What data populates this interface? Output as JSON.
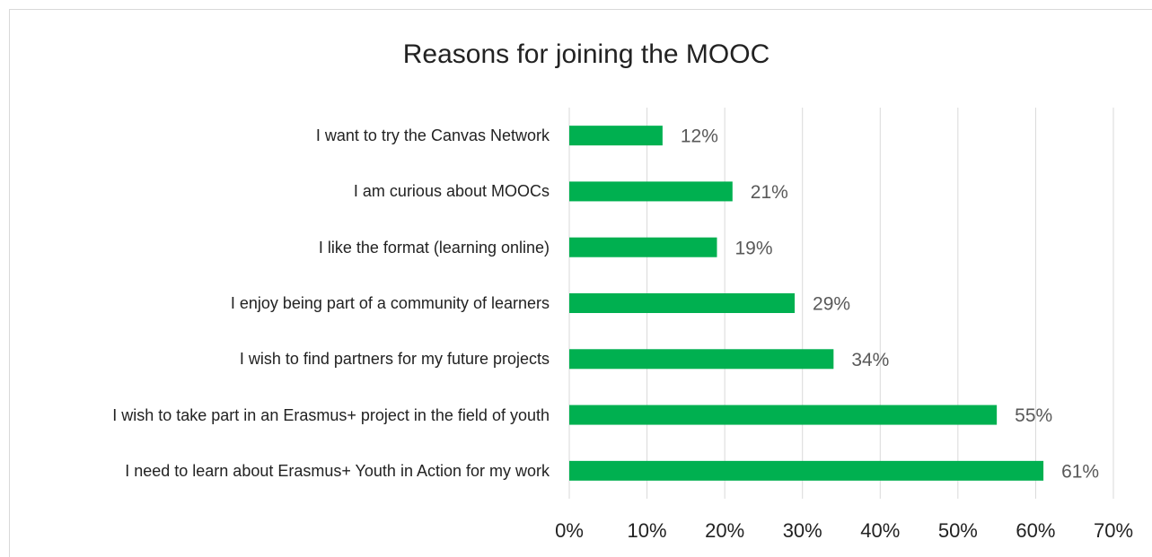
{
  "chart_data": {
    "type": "barh",
    "title": "Reasons for joining the MOOC",
    "categories": [
      "I want to try the Canvas Network",
      "I am curious about MOOCs",
      "I like the format (learning online)",
      "I enjoy being part of a community of learners",
      "I wish to find partners for my future projects",
      "I wish to take part in an Erasmus+ project in the field of youth",
      "I need to learn about Erasmus+ Youth in Action for my work"
    ],
    "values": [
      12,
      21,
      19,
      29,
      34,
      55,
      61
    ],
    "value_labels": [
      "12%",
      "21%",
      "19%",
      "29%",
      "34%",
      "55%",
      "61%"
    ],
    "color": "#00b050",
    "xlim": [
      0,
      70
    ],
    "xticks": [
      {
        "value": 0,
        "label": "0%"
      },
      {
        "value": 10,
        "label": "10%"
      },
      {
        "value": 20,
        "label": "20%"
      },
      {
        "value": 30,
        "label": "30%"
      },
      {
        "value": 40,
        "label": "40%"
      },
      {
        "value": 50,
        "label": "50%"
      },
      {
        "value": 60,
        "label": "60%"
      },
      {
        "value": 70,
        "label": "70%"
      }
    ],
    "grid": true
  }
}
